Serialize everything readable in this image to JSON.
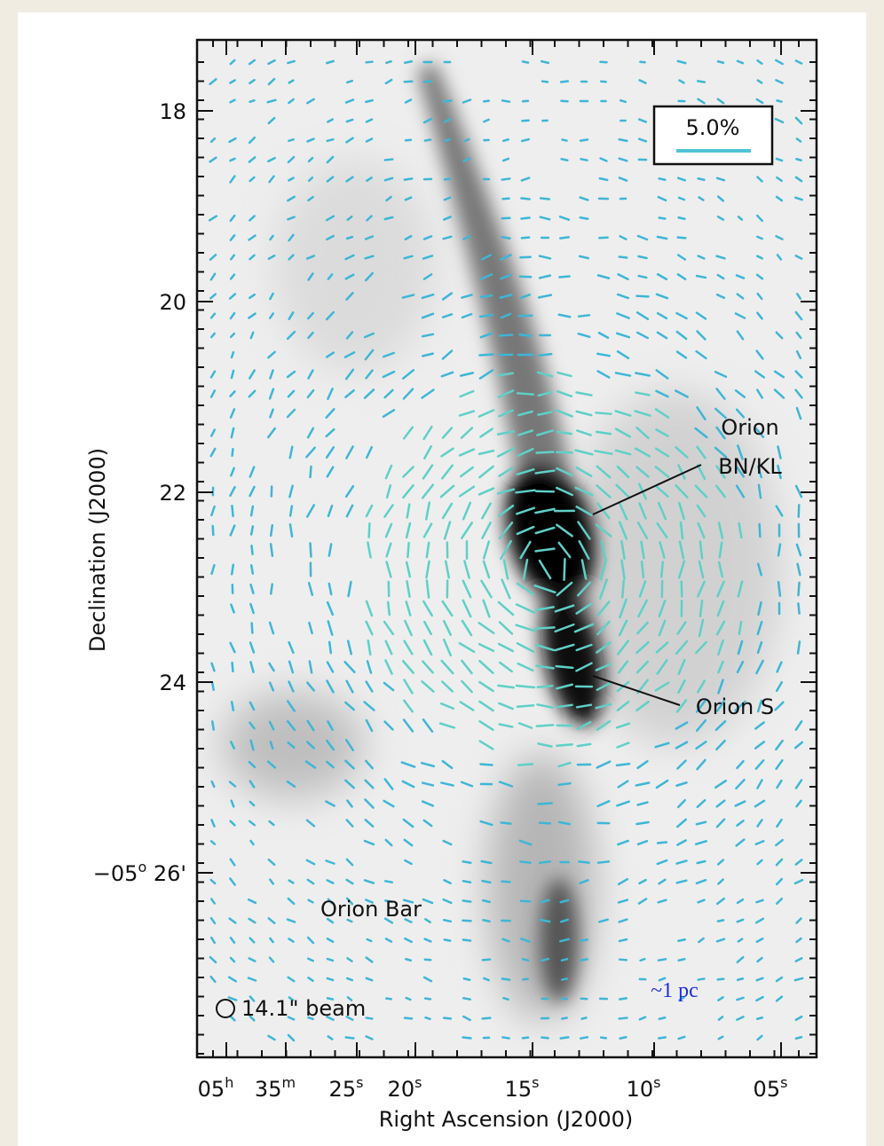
{
  "figure": {
    "y_axis_title": "Declination (J2000)",
    "x_axis_title": "Right Ascension (J2000)",
    "y_tick_labels": [
      "18",
      "20",
      "22",
      "24",
      {
        "base": "−05",
        "sup": "o",
        "rest": " 26'"
      }
    ],
    "x_tick_labels": [
      {
        "base": "05",
        "sup": "h"
      },
      {
        "base": "35",
        "sup": "m"
      },
      {
        "base": "25",
        "sup": "s"
      },
      {
        "base": "20",
        "sup": "s"
      },
      {
        "base": "15",
        "sup": "s"
      },
      {
        "base": "10",
        "sup": "s"
      },
      {
        "base": "05",
        "sup": "s"
      }
    ],
    "scale_box": "5.0%",
    "annotations": {
      "bnkl_line1": "Orion",
      "bnkl_line2": "BN/KL",
      "orion_s": "Orion S",
      "orion_bar": "Orion Bar",
      "beam": "14.1\" beam",
      "scale_bar": "~1 pc"
    }
  }
}
